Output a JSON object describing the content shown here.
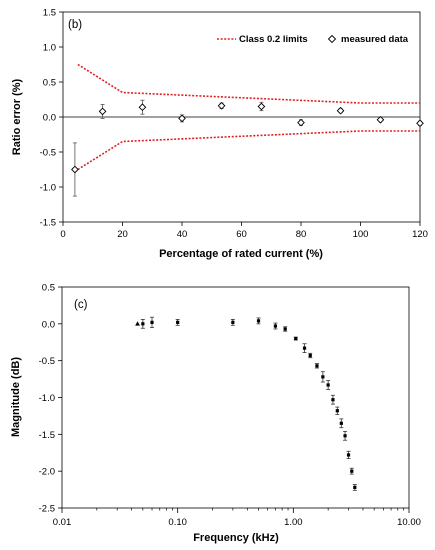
{
  "chart_data": [
    {
      "type": "scatter",
      "panel_label": "(b)",
      "xlabel": "Percentage of rated current (%)",
      "ylabel": "Ratio error (%)",
      "xlim": [
        0,
        120
      ],
      "ylim": [
        -1.5,
        1.5
      ],
      "x_ticks": [
        0,
        20,
        40,
        60,
        80,
        100,
        120
      ],
      "y_ticks": [
        -1.5,
        -1.0,
        -0.5,
        0.0,
        0.5,
        1.0,
        1.5
      ],
      "x_tick_labels": [
        "0",
        "20",
        "40",
        "60",
        "80",
        "100",
        "120"
      ],
      "y_tick_labels": [
        "-1.5",
        "-1.0",
        "-0.5",
        "0.0",
        "0.5",
        "1.0",
        "1.5"
      ],
      "grid": false,
      "legend_position": "top-right",
      "limits": {
        "name": "Class 0.2 limits",
        "color": "#e02020",
        "x": [
          5,
          20,
          100,
          120
        ],
        "upper": [
          0.75,
          0.35,
          0.2,
          0.2
        ],
        "lower": [
          -0.75,
          -0.35,
          -0.2,
          -0.2
        ]
      },
      "measured": {
        "name": "measured data",
        "color": "#000000",
        "points": [
          {
            "x": 4,
            "y": -0.75,
            "err": 0.38
          },
          {
            "x": 13.3,
            "y": 0.08,
            "err": 0.1
          },
          {
            "x": 26.7,
            "y": 0.14,
            "err": 0.1
          },
          {
            "x": 40,
            "y": -0.02,
            "err": 0.05
          },
          {
            "x": 53.3,
            "y": 0.16,
            "err": 0.04
          },
          {
            "x": 66.7,
            "y": 0.15,
            "err": 0.06
          },
          {
            "x": 80,
            "y": -0.08,
            "err": 0.04
          },
          {
            "x": 93.3,
            "y": 0.09,
            "err": 0.03
          },
          {
            "x": 106.7,
            "y": -0.04,
            "err": 0.02
          },
          {
            "x": 120,
            "y": -0.09,
            "err": 0.03
          }
        ]
      }
    },
    {
      "type": "scatter",
      "panel_label": "(c)",
      "xlabel": "Frequency (kHz)",
      "ylabel": "Magnitude (dB)",
      "x_scale": "log",
      "xlim": [
        0.01,
        10
      ],
      "ylim": [
        -2.5,
        0.5
      ],
      "x_ticks": [
        0.01,
        0.1,
        1,
        10
      ],
      "y_ticks": [
        -2.5,
        -2.0,
        -1.5,
        -1.0,
        -0.5,
        0.0,
        0.5
      ],
      "x_tick_labels": [
        "0.01",
        "0.10",
        "1.00",
        "10.00"
      ],
      "y_tick_labels": [
        "-2.5",
        "-2.0",
        "-1.5",
        "-1.0",
        "-0.5",
        "0.0",
        "0.5"
      ],
      "grid": false,
      "series": [
        {
          "color": "#000000",
          "points": [
            {
              "x": 0.045,
              "y": 0.0,
              "err": 0.0
            },
            {
              "x": 0.05,
              "y": 0.0,
              "err": 0.06
            },
            {
              "x": 0.06,
              "y": 0.02,
              "err": 0.07
            },
            {
              "x": 0.1,
              "y": 0.02,
              "err": 0.04
            },
            {
              "x": 0.3,
              "y": 0.02,
              "err": 0.04
            },
            {
              "x": 0.5,
              "y": 0.04,
              "err": 0.04
            },
            {
              "x": 0.7,
              "y": -0.03,
              "err": 0.04
            },
            {
              "x": 0.85,
              "y": -0.07,
              "err": 0.03
            },
            {
              "x": 1.05,
              "y": -0.2,
              "err": 0.02
            },
            {
              "x": 1.25,
              "y": -0.33,
              "err": 0.06
            },
            {
              "x": 1.4,
              "y": -0.43,
              "err": 0.03
            },
            {
              "x": 1.6,
              "y": -0.57,
              "err": 0.03
            },
            {
              "x": 1.8,
              "y": -0.72,
              "err": 0.07
            },
            {
              "x": 2.0,
              "y": -0.83,
              "err": 0.06
            },
            {
              "x": 2.2,
              "y": -1.03,
              "err": 0.06
            },
            {
              "x": 2.4,
              "y": -1.18,
              "err": 0.05
            },
            {
              "x": 2.6,
              "y": -1.35,
              "err": 0.06
            },
            {
              "x": 2.8,
              "y": -1.52,
              "err": 0.06
            },
            {
              "x": 3.0,
              "y": -1.78,
              "err": 0.05
            },
            {
              "x": 3.2,
              "y": -2.0,
              "err": 0.04
            },
            {
              "x": 3.4,
              "y": -2.22,
              "err": 0.04
            }
          ]
        }
      ]
    }
  ]
}
